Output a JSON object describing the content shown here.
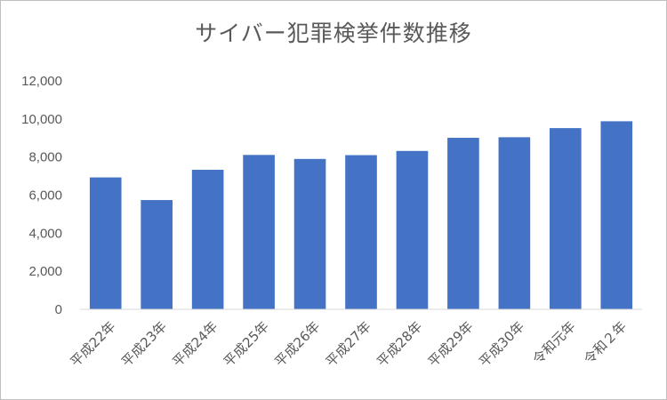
{
  "chart_data": {
    "type": "bar",
    "title": "サイバー犯罪検挙件数推移",
    "xlabel": "",
    "ylabel": "",
    "categories": [
      "平成22年",
      "平成23年",
      "平成24年",
      "平成25年",
      "平成26年",
      "平成27年",
      "平成28年",
      "平成29年",
      "平成30年",
      "令和元年",
      "令和２年"
    ],
    "values": [
      6930,
      5740,
      7330,
      8110,
      7900,
      8100,
      8320,
      9010,
      9040,
      9520,
      9880
    ],
    "ylim": [
      0,
      12000
    ],
    "yticks": [
      "0",
      "2,000",
      "4,000",
      "6,000",
      "8,000",
      "10,000",
      "12,000"
    ],
    "bar_color": "#4472c4",
    "grid": false,
    "legend": "none"
  }
}
